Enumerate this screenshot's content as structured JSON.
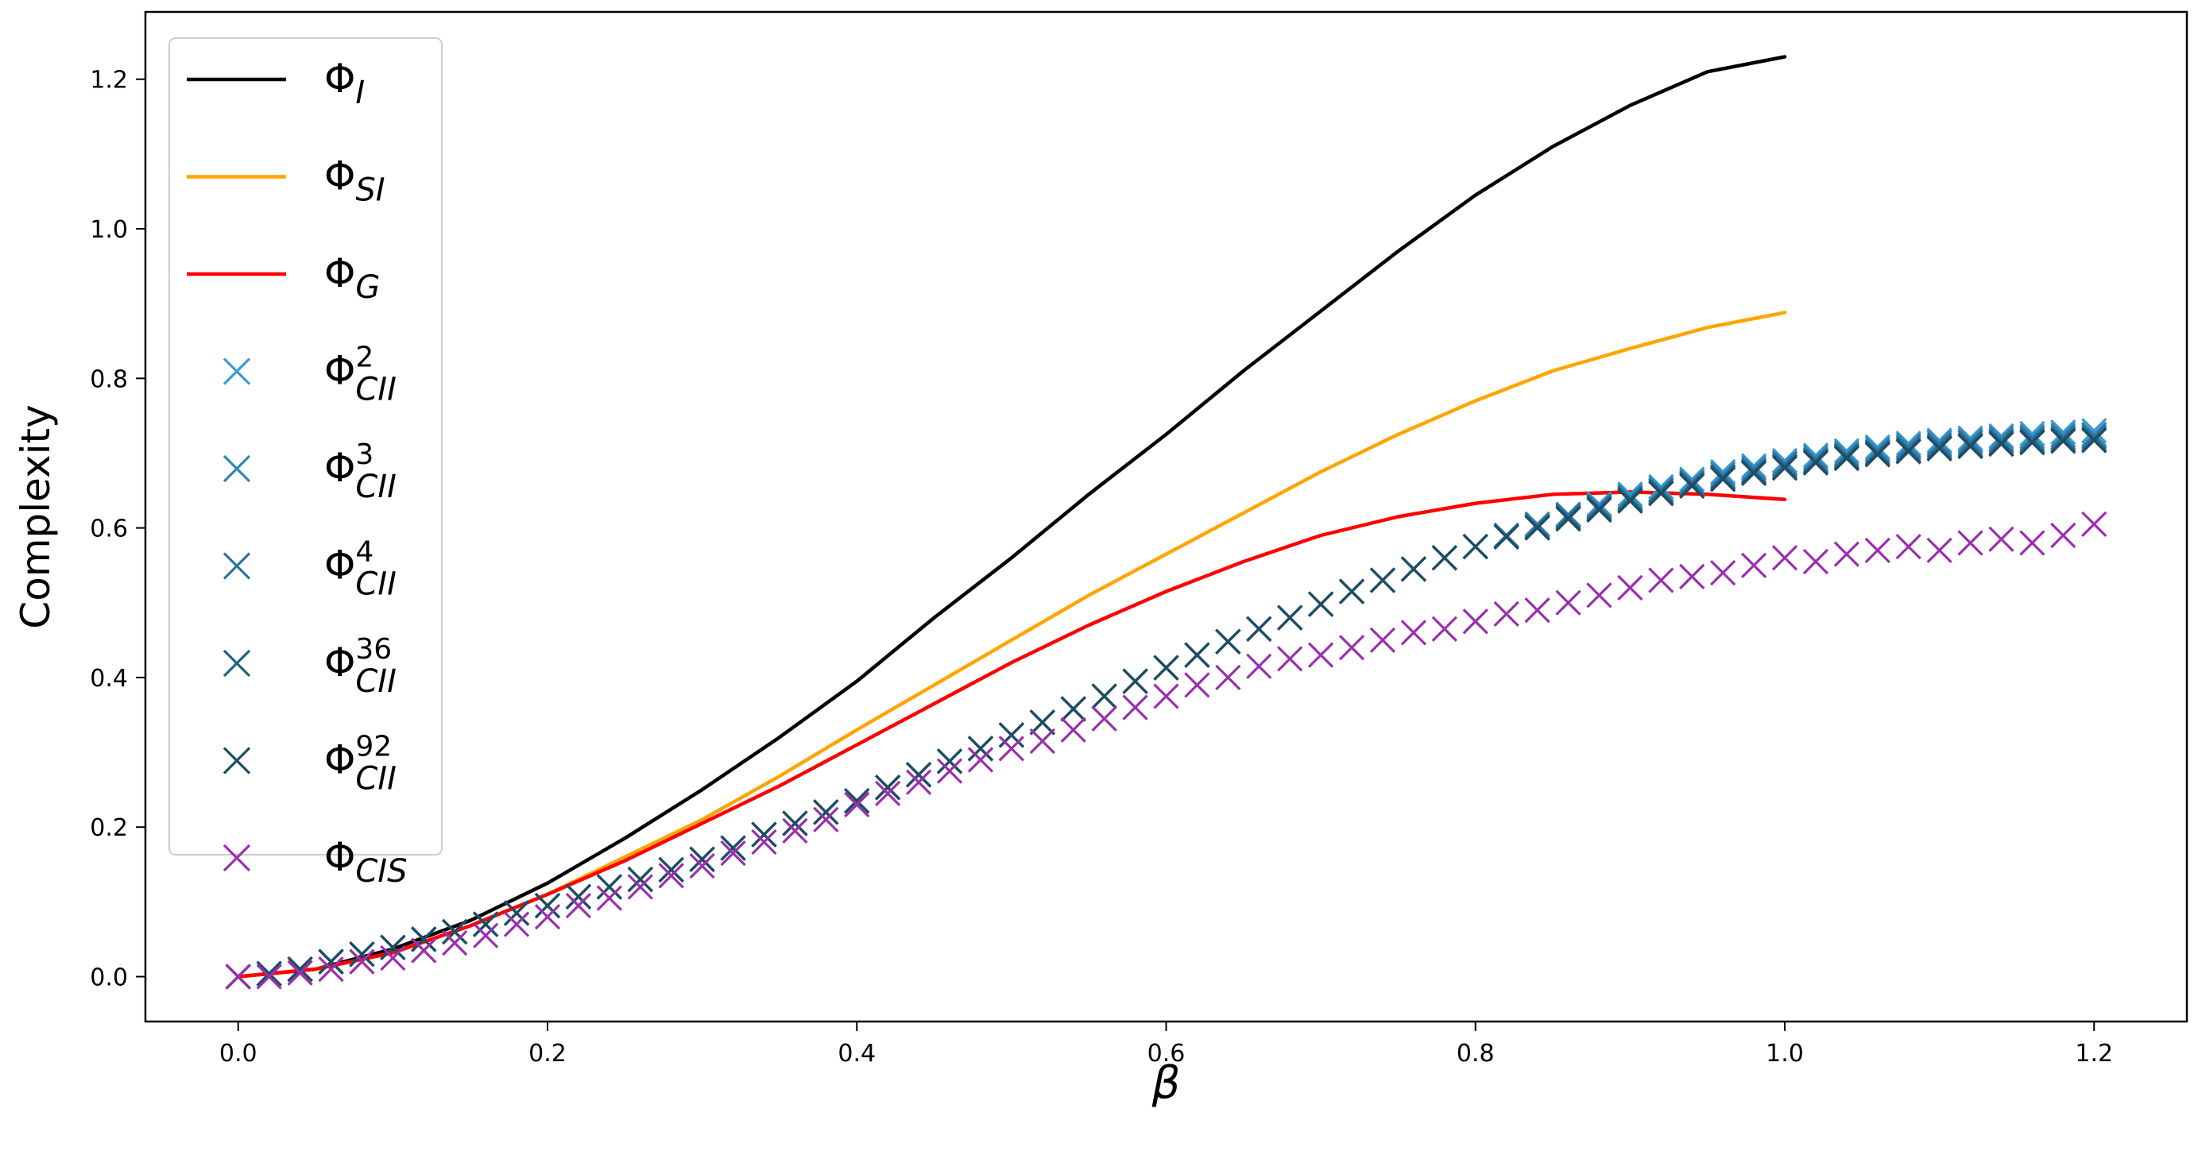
{
  "chart_data": {
    "type": "line",
    "title": "",
    "xlabel": "β",
    "ylabel": "Complexity",
    "xlim": [
      -0.06,
      1.26
    ],
    "ylim": [
      -0.06,
      1.29
    ],
    "xticks": [
      0.0,
      0.2,
      0.4,
      0.6,
      0.8,
      1.0,
      1.2
    ],
    "xtick_labels": [
      "0.0",
      "0.2",
      "0.4",
      "0.6",
      "0.8",
      "1.0",
      "1.2"
    ],
    "yticks": [
      0.0,
      0.2,
      0.4,
      0.6,
      0.8,
      1.0,
      1.2
    ],
    "ytick_labels": [
      "0.0",
      "0.2",
      "0.4",
      "0.6",
      "0.8",
      "1.0",
      "1.2"
    ],
    "grid": false,
    "legend_position": "upper-left",
    "colors": {
      "phi_i": "#000000",
      "phi_si": "#ffa500",
      "phi_g": "#ff0000",
      "cii2": "#3b9bd1",
      "cii3": "#2f86b8",
      "cii4": "#2a74a0",
      "cii36": "#24617f",
      "cii92": "#1f4c63",
      "cis": "#9b2fae"
    },
    "x_lines": [
      0.0,
      0.05,
      0.1,
      0.15,
      0.2,
      0.25,
      0.3,
      0.35,
      0.4,
      0.45,
      0.5,
      0.55,
      0.6,
      0.65,
      0.7,
      0.75,
      0.8,
      0.85,
      0.9,
      0.95,
      1.0,
      1.05,
      1.1,
      1.15,
      1.2
    ],
    "series": [
      {
        "name": "Φ_I",
        "label_main": "Φ",
        "label_sub": "I",
        "label_sup": "",
        "kind": "line",
        "color_key": "phi_i",
        "values": [
          0.0,
          0.01,
          0.037,
          0.075,
          0.125,
          0.185,
          0.25,
          0.32,
          0.395,
          0.48,
          0.56,
          0.645,
          0.725,
          0.81,
          0.89,
          0.97,
          1.045,
          1.11,
          1.165,
          1.21,
          1.23
        ]
      },
      {
        "name": "Φ_SI",
        "label_main": "Φ",
        "label_sub": "SI",
        "label_sup": "",
        "kind": "line",
        "color_key": "phi_si",
        "values": [
          0.0,
          0.01,
          0.032,
          0.068,
          0.11,
          0.16,
          0.21,
          0.268,
          0.33,
          0.39,
          0.45,
          0.51,
          0.565,
          0.62,
          0.675,
          0.725,
          0.77,
          0.81,
          0.84,
          0.868,
          0.888
        ]
      },
      {
        "name": "Φ_G",
        "label_main": "Φ",
        "label_sub": "G",
        "label_sup": "",
        "kind": "line",
        "color_key": "phi_g",
        "values": [
          0.0,
          0.01,
          0.032,
          0.068,
          0.11,
          0.155,
          0.205,
          0.255,
          0.31,
          0.365,
          0.42,
          0.47,
          0.515,
          0.555,
          0.59,
          0.615,
          0.633,
          0.645,
          0.648,
          0.645,
          0.638
        ]
      },
      {
        "name": "Φ_CII^2",
        "label_main": "Φ",
        "label_sub": "CII",
        "label_sup": "2",
        "kind": "marker",
        "color_key": "cii2",
        "x": [
          0.0,
          0.02,
          0.04,
          0.06,
          0.08,
          0.1,
          0.12,
          0.14,
          0.16,
          0.18,
          0.2,
          0.22,
          0.24,
          0.26,
          0.28,
          0.3,
          0.32,
          0.34,
          0.36,
          0.38,
          0.4,
          0.42,
          0.44,
          0.46,
          0.48,
          0.5,
          0.52,
          0.54,
          0.56,
          0.58,
          0.6,
          0.62,
          0.64,
          0.66,
          0.68,
          0.7,
          0.72,
          0.74,
          0.76,
          0.78,
          0.8,
          0.82,
          0.84,
          0.86,
          0.88,
          0.9,
          0.92,
          0.94,
          0.96,
          0.98,
          1.0,
          1.02,
          1.04,
          1.06,
          1.08,
          1.1,
          1.12,
          1.14,
          1.16,
          1.18,
          1.2
        ],
        "values": [
          0.0,
          0.004,
          0.01,
          0.02,
          0.03,
          0.039,
          0.05,
          0.06,
          0.07,
          0.085,
          0.095,
          0.107,
          0.12,
          0.13,
          0.143,
          0.157,
          0.172,
          0.19,
          0.205,
          0.22,
          0.235,
          0.253,
          0.27,
          0.288,
          0.305,
          0.323,
          0.34,
          0.358,
          0.375,
          0.395,
          0.413,
          0.43,
          0.448,
          0.465,
          0.48,
          0.498,
          0.515,
          0.53,
          0.545,
          0.56,
          0.575,
          0.59,
          0.605,
          0.618,
          0.632,
          0.645,
          0.655,
          0.665,
          0.675,
          0.683,
          0.69,
          0.697,
          0.703,
          0.708,
          0.713,
          0.717,
          0.72,
          0.723,
          0.726,
          0.728,
          0.73
        ]
      },
      {
        "name": "Φ_CII^3",
        "label_main": "Φ",
        "label_sub": "CII",
        "label_sup": "3",
        "kind": "marker",
        "color_key": "cii3",
        "x": [
          0.0,
          0.02,
          0.04,
          0.06,
          0.08,
          0.1,
          0.12,
          0.14,
          0.16,
          0.18,
          0.2,
          0.22,
          0.24,
          0.26,
          0.28,
          0.3,
          0.32,
          0.34,
          0.36,
          0.38,
          0.4,
          0.42,
          0.44,
          0.46,
          0.48,
          0.5,
          0.52,
          0.54,
          0.56,
          0.58,
          0.6,
          0.62,
          0.64,
          0.66,
          0.68,
          0.7,
          0.72,
          0.74,
          0.76,
          0.78,
          0.8,
          0.82,
          0.84,
          0.86,
          0.88,
          0.9,
          0.92,
          0.94,
          0.96,
          0.98,
          1.0,
          1.02,
          1.04,
          1.06,
          1.08,
          1.1,
          1.12,
          1.14,
          1.16,
          1.18,
          1.2
        ],
        "values": [
          0.0,
          0.004,
          0.01,
          0.02,
          0.03,
          0.039,
          0.05,
          0.06,
          0.07,
          0.085,
          0.095,
          0.107,
          0.12,
          0.13,
          0.143,
          0.157,
          0.172,
          0.19,
          0.205,
          0.22,
          0.235,
          0.253,
          0.27,
          0.288,
          0.305,
          0.323,
          0.34,
          0.358,
          0.375,
          0.395,
          0.413,
          0.43,
          0.448,
          0.465,
          0.48,
          0.498,
          0.515,
          0.53,
          0.545,
          0.56,
          0.575,
          0.59,
          0.605,
          0.618,
          0.63,
          0.642,
          0.652,
          0.662,
          0.672,
          0.68,
          0.687,
          0.694,
          0.7,
          0.705,
          0.71,
          0.714,
          0.717,
          0.72,
          0.722,
          0.724,
          0.725
        ]
      },
      {
        "name": "Φ_CII^4",
        "label_main": "Φ",
        "label_sub": "CII",
        "label_sup": "4",
        "kind": "marker",
        "color_key": "cii4",
        "x": [
          0.0,
          0.02,
          0.04,
          0.06,
          0.08,
          0.1,
          0.12,
          0.14,
          0.16,
          0.18,
          0.2,
          0.22,
          0.24,
          0.26,
          0.28,
          0.3,
          0.32,
          0.34,
          0.36,
          0.38,
          0.4,
          0.42,
          0.44,
          0.46,
          0.48,
          0.5,
          0.52,
          0.54,
          0.56,
          0.58,
          0.6,
          0.62,
          0.64,
          0.66,
          0.68,
          0.7,
          0.72,
          0.74,
          0.76,
          0.78,
          0.8,
          0.82,
          0.84,
          0.86,
          0.88,
          0.9,
          0.92,
          0.94,
          0.96,
          0.98,
          1.0,
          1.02,
          1.04,
          1.06,
          1.08,
          1.1,
          1.12,
          1.14,
          1.16,
          1.18,
          1.2
        ],
        "values": [
          0.0,
          0.004,
          0.01,
          0.02,
          0.03,
          0.039,
          0.05,
          0.06,
          0.07,
          0.085,
          0.095,
          0.107,
          0.12,
          0.13,
          0.143,
          0.157,
          0.172,
          0.19,
          0.205,
          0.22,
          0.235,
          0.253,
          0.27,
          0.288,
          0.305,
          0.323,
          0.34,
          0.358,
          0.375,
          0.395,
          0.413,
          0.43,
          0.448,
          0.465,
          0.48,
          0.498,
          0.515,
          0.53,
          0.545,
          0.56,
          0.575,
          0.59,
          0.603,
          0.616,
          0.628,
          0.64,
          0.65,
          0.66,
          0.669,
          0.677,
          0.685,
          0.691,
          0.697,
          0.702,
          0.707,
          0.711,
          0.714,
          0.717,
          0.719,
          0.721,
          0.722
        ]
      },
      {
        "name": "Φ_CII^36",
        "label_main": "Φ",
        "label_sub": "CII",
        "label_sup": "36",
        "kind": "marker",
        "color_key": "cii36",
        "x": [
          0.0,
          0.02,
          0.04,
          0.06,
          0.08,
          0.1,
          0.12,
          0.14,
          0.16,
          0.18,
          0.2,
          0.22,
          0.24,
          0.26,
          0.28,
          0.3,
          0.32,
          0.34,
          0.36,
          0.38,
          0.4,
          0.42,
          0.44,
          0.46,
          0.48,
          0.5,
          0.52,
          0.54,
          0.56,
          0.58,
          0.6,
          0.62,
          0.64,
          0.66,
          0.68,
          0.7,
          0.72,
          0.74,
          0.76,
          0.78,
          0.8,
          0.82,
          0.84,
          0.86,
          0.88,
          0.9,
          0.92,
          0.94,
          0.96,
          0.98,
          1.0,
          1.02,
          1.04,
          1.06,
          1.08,
          1.1,
          1.12,
          1.14,
          1.16,
          1.18,
          1.2
        ],
        "values": [
          0.0,
          0.004,
          0.01,
          0.02,
          0.03,
          0.039,
          0.05,
          0.06,
          0.07,
          0.085,
          0.095,
          0.107,
          0.12,
          0.13,
          0.143,
          0.157,
          0.172,
          0.19,
          0.205,
          0.22,
          0.235,
          0.253,
          0.27,
          0.288,
          0.305,
          0.323,
          0.34,
          0.358,
          0.375,
          0.395,
          0.413,
          0.43,
          0.448,
          0.465,
          0.48,
          0.498,
          0.515,
          0.53,
          0.545,
          0.56,
          0.575,
          0.588,
          0.601,
          0.614,
          0.626,
          0.638,
          0.648,
          0.658,
          0.667,
          0.675,
          0.682,
          0.689,
          0.695,
          0.7,
          0.704,
          0.708,
          0.711,
          0.714,
          0.716,
          0.718,
          0.719
        ]
      },
      {
        "name": "Φ_CII^92",
        "label_main": "Φ",
        "label_sub": "CII",
        "label_sup": "92",
        "kind": "marker",
        "color_key": "cii92",
        "x": [
          0.0,
          0.02,
          0.04,
          0.06,
          0.08,
          0.1,
          0.12,
          0.14,
          0.16,
          0.18,
          0.2,
          0.22,
          0.24,
          0.26,
          0.28,
          0.3,
          0.32,
          0.34,
          0.36,
          0.38,
          0.4,
          0.42,
          0.44,
          0.46,
          0.48,
          0.5,
          0.52,
          0.54,
          0.56,
          0.58,
          0.6,
          0.62,
          0.64,
          0.66,
          0.68,
          0.7,
          0.72,
          0.74,
          0.76,
          0.78,
          0.8,
          0.82,
          0.84,
          0.86,
          0.88,
          0.9,
          0.92,
          0.94,
          0.96,
          0.98,
          1.0,
          1.02,
          1.04,
          1.06,
          1.08,
          1.1,
          1.12,
          1.14,
          1.16,
          1.18,
          1.2
        ],
        "values": [
          0.0,
          0.004,
          0.01,
          0.02,
          0.03,
          0.039,
          0.05,
          0.06,
          0.07,
          0.085,
          0.095,
          0.107,
          0.12,
          0.13,
          0.143,
          0.157,
          0.172,
          0.19,
          0.205,
          0.22,
          0.235,
          0.253,
          0.27,
          0.288,
          0.305,
          0.323,
          0.34,
          0.358,
          0.375,
          0.395,
          0.413,
          0.43,
          0.448,
          0.465,
          0.48,
          0.498,
          0.515,
          0.53,
          0.545,
          0.56,
          0.575,
          0.588,
          0.6,
          0.612,
          0.624,
          0.636,
          0.646,
          0.656,
          0.665,
          0.673,
          0.68,
          0.687,
          0.693,
          0.698,
          0.702,
          0.706,
          0.709,
          0.712,
          0.714,
          0.716,
          0.717
        ]
      },
      {
        "name": "Φ_CIS",
        "label_main": "Φ",
        "label_sub": "CIS",
        "label_sup": "",
        "kind": "marker",
        "color_key": "cis",
        "x": [
          0.0,
          0.02,
          0.04,
          0.06,
          0.08,
          0.1,
          0.12,
          0.14,
          0.16,
          0.18,
          0.2,
          0.22,
          0.24,
          0.26,
          0.28,
          0.3,
          0.32,
          0.34,
          0.36,
          0.38,
          0.4,
          0.42,
          0.44,
          0.46,
          0.48,
          0.5,
          0.52,
          0.54,
          0.56,
          0.58,
          0.6,
          0.62,
          0.64,
          0.66,
          0.68,
          0.7,
          0.72,
          0.74,
          0.76,
          0.78,
          0.8,
          0.82,
          0.84,
          0.86,
          0.88,
          0.9,
          0.92,
          0.94,
          0.96,
          0.98,
          1.0,
          1.02,
          1.04,
          1.06,
          1.08,
          1.1,
          1.12,
          1.14,
          1.16,
          1.18,
          1.2
        ],
        "values": [
          0.0,
          0.0,
          0.005,
          0.01,
          0.02,
          0.025,
          0.035,
          0.045,
          0.055,
          0.07,
          0.08,
          0.095,
          0.105,
          0.12,
          0.135,
          0.148,
          0.165,
          0.18,
          0.195,
          0.21,
          0.23,
          0.245,
          0.26,
          0.275,
          0.29,
          0.305,
          0.315,
          0.33,
          0.345,
          0.36,
          0.375,
          0.39,
          0.4,
          0.415,
          0.425,
          0.43,
          0.44,
          0.45,
          0.46,
          0.465,
          0.475,
          0.485,
          0.49,
          0.5,
          0.51,
          0.52,
          0.53,
          0.535,
          0.54,
          0.55,
          0.56,
          0.555,
          0.565,
          0.57,
          0.575,
          0.57,
          0.58,
          0.585,
          0.58,
          0.59,
          0.605
        ]
      }
    ]
  }
}
